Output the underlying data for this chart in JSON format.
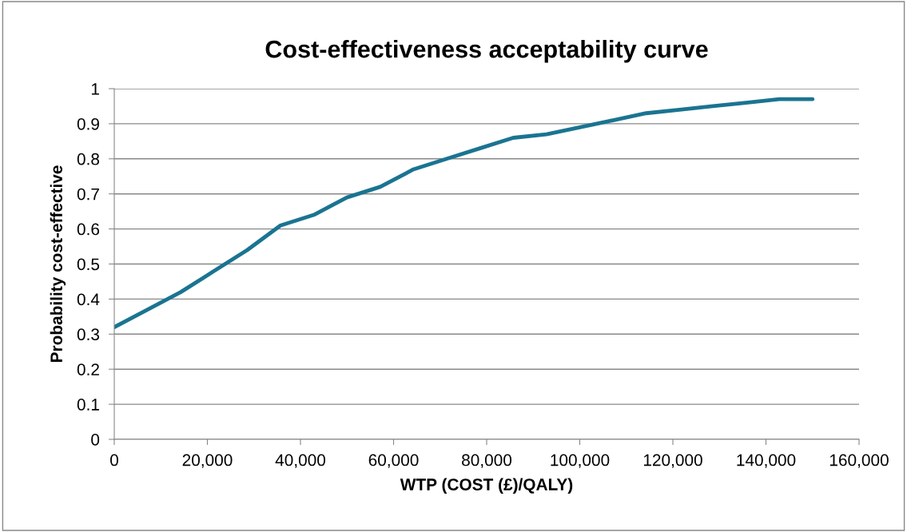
{
  "chart_data": {
    "type": "line",
    "title": "Cost-effectiveness acceptability curve",
    "xlabel": "WTP (COST (£)/QALY)",
    "ylabel": "Probability cost-effective",
    "x": [
      0,
      7143,
      14286,
      21429,
      28571,
      35714,
      42857,
      50000,
      57143,
      64286,
      71429,
      78571,
      85714,
      92857,
      100000,
      107143,
      114286,
      121429,
      128571,
      135714,
      142857,
      150000
    ],
    "series": [
      {
        "color": "#1a7491",
        "values": [
          0.32,
          0.37,
          0.42,
          0.48,
          0.54,
          0.61,
          0.64,
          0.69,
          0.72,
          0.77,
          0.8,
          0.83,
          0.86,
          0.87,
          0.89,
          0.91,
          0.93,
          0.94,
          0.95,
          0.96,
          0.97,
          0.97
        ]
      }
    ],
    "xlim": [
      0,
      160000
    ],
    "xticks": [
      0,
      {
        "value": 20000,
        "label": "20,000"
      },
      {
        "value": 40000,
        "label": "40,000"
      },
      {
        "value": 60000,
        "label": "60,000"
      },
      {
        "value": 80000,
        "label": "80,000"
      },
      {
        "value": 100000,
        "label": "100,000"
      },
      {
        "value": 120000,
        "label": "120,000"
      },
      {
        "value": 140000,
        "label": "140,000"
      },
      {
        "value": 160000,
        "label": "160,000"
      }
    ],
    "ylim": [
      0,
      1
    ],
    "yticks": [
      0,
      0.1,
      0.2,
      0.3,
      0.4,
      0.5,
      0.6,
      0.7,
      0.8,
      0.9,
      1
    ],
    "grid": "y",
    "legend": false,
    "marker": "none",
    "line_style": "solid"
  }
}
